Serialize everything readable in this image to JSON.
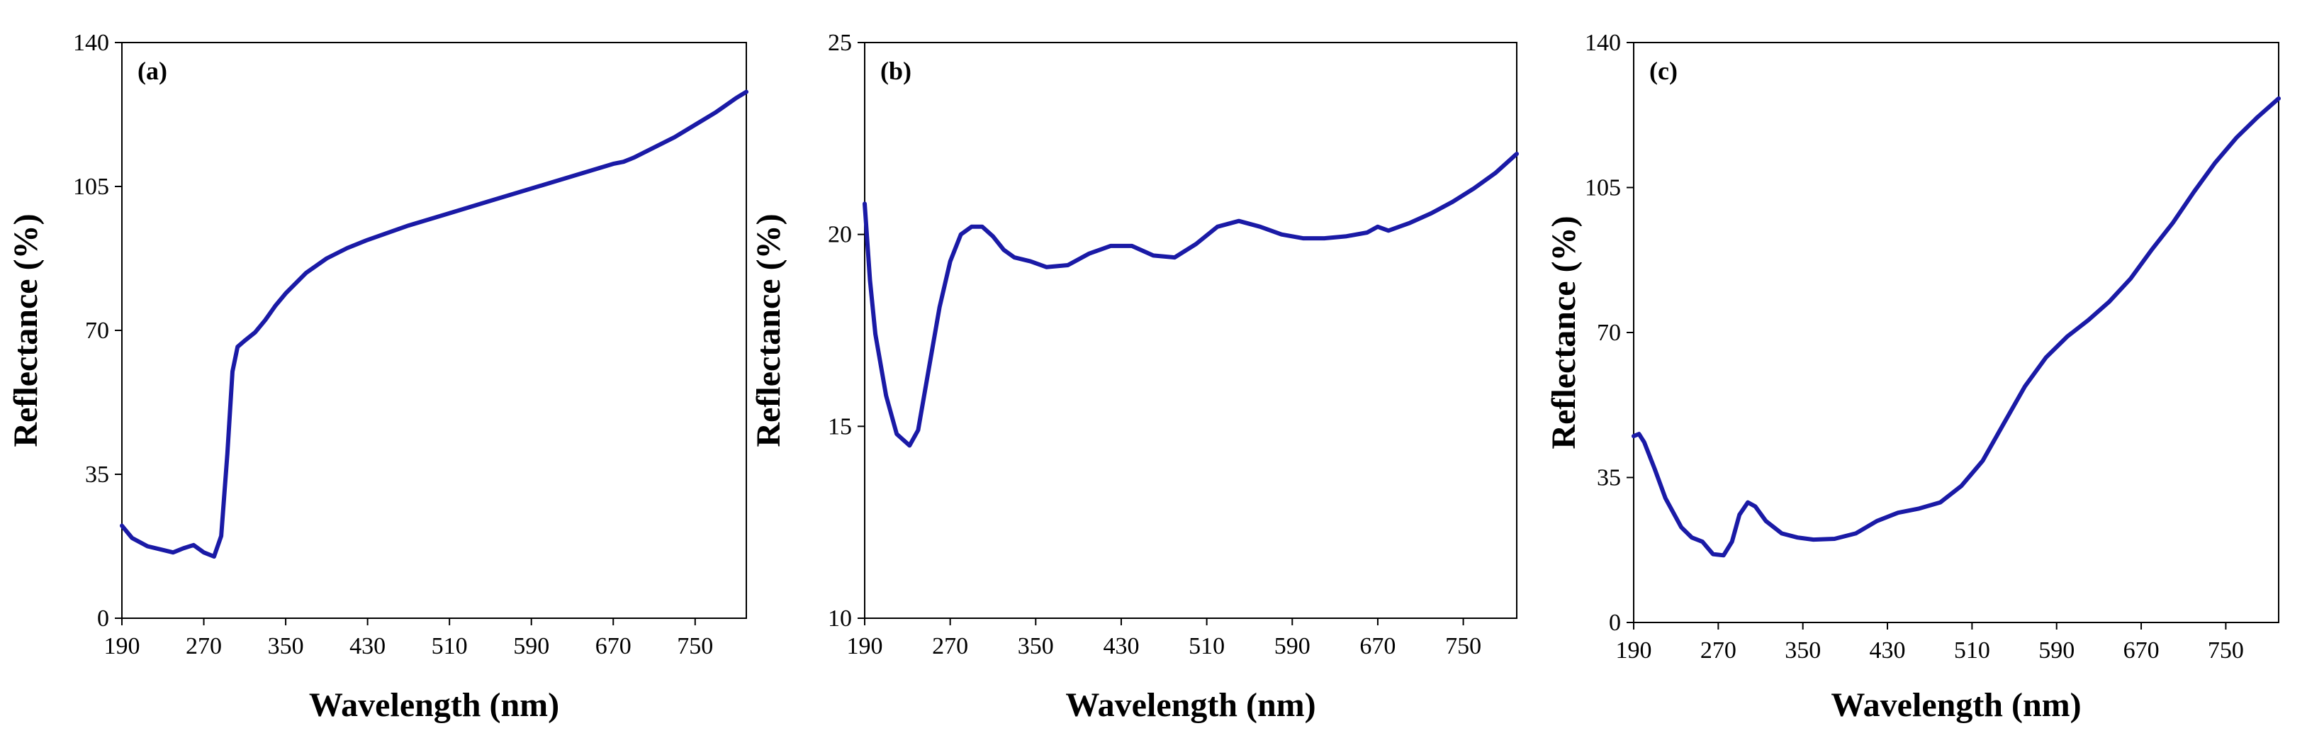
{
  "chart_data": [
    {
      "type": "line",
      "panel_label": "(a)",
      "xlabel": "Wavelength (nm)",
      "ylabel": "Reflectance (%)",
      "xlim": [
        190,
        800
      ],
      "ylim": [
        0,
        140
      ],
      "xticks": [
        190,
        270,
        350,
        430,
        510,
        590,
        670,
        750
      ],
      "yticks": [
        0,
        35,
        70,
        105,
        140
      ],
      "grid": false,
      "legend": "none",
      "line_color": "#1a1aa6",
      "series": [
        {
          "name": "Reflectance",
          "x": [
            190,
            200,
            215,
            240,
            250,
            260,
            270,
            280,
            287,
            293,
            298,
            303,
            310,
            320,
            330,
            340,
            350,
            370,
            390,
            410,
            430,
            470,
            510,
            550,
            590,
            630,
            670,
            680,
            690,
            710,
            730,
            750,
            770,
            790,
            800
          ],
          "y": [
            22.5,
            19.5,
            17.5,
            16,
            17,
            17.8,
            16,
            15,
            20,
            40,
            60,
            66,
            67.5,
            69.5,
            72.5,
            76,
            79,
            84,
            87.5,
            90,
            92,
            95.5,
            98.5,
            101.5,
            104.5,
            107.5,
            110.5,
            111,
            112,
            114.5,
            117,
            120,
            123,
            126.5,
            128
          ]
        }
      ]
    },
    {
      "type": "line",
      "panel_label": "(b)",
      "xlabel": "Wavelength (nm)",
      "ylabel": "Reflectance (%)",
      "xlim": [
        190,
        800
      ],
      "ylim": [
        10,
        25
      ],
      "xticks": [
        190,
        270,
        350,
        430,
        510,
        590,
        670,
        750
      ],
      "yticks": [
        10,
        15,
        20,
        25
      ],
      "grid": false,
      "legend": "none",
      "line_color": "#1a1aa6",
      "series": [
        {
          "name": "Reflectance",
          "x": [
            190,
            195,
            200,
            210,
            220,
            232,
            240,
            250,
            260,
            270,
            280,
            290,
            300,
            310,
            320,
            330,
            345,
            360,
            380,
            400,
            420,
            440,
            460,
            480,
            500,
            520,
            540,
            560,
            580,
            600,
            620,
            640,
            660,
            670,
            680,
            690,
            700,
            720,
            740,
            760,
            780,
            800
          ],
          "y": [
            20.8,
            18.8,
            17.4,
            15.8,
            14.8,
            14.5,
            14.9,
            16.5,
            18.1,
            19.3,
            20.0,
            20.2,
            20.2,
            19.95,
            19.6,
            19.4,
            19.3,
            19.15,
            19.2,
            19.5,
            19.7,
            19.7,
            19.45,
            19.4,
            19.75,
            20.2,
            20.35,
            20.2,
            20.0,
            19.9,
            19.9,
            19.95,
            20.05,
            20.2,
            20.1,
            20.2,
            20.3,
            20.55,
            20.85,
            21.2,
            21.6,
            22.1
          ]
        }
      ]
    },
    {
      "type": "line",
      "panel_label": "(c)",
      "xlabel": "Wavelength (nm)",
      "ylabel": "Reflectance (%)",
      "xlim": [
        190,
        800
      ],
      "ylim": [
        0,
        140
      ],
      "xticks": [
        190,
        270,
        350,
        430,
        510,
        590,
        670,
        750
      ],
      "yticks": [
        0,
        35,
        70,
        105,
        140
      ],
      "grid": false,
      "legend": "none",
      "line_color": "#1a1aa6",
      "series": [
        {
          "name": "Reflectance",
          "x": [
            190,
            195,
            200,
            210,
            220,
            235,
            245,
            255,
            265,
            275,
            283,
            290,
            298,
            305,
            315,
            330,
            345,
            360,
            380,
            400,
            420,
            440,
            460,
            480,
            500,
            520,
            540,
            560,
            580,
            600,
            620,
            640,
            660,
            680,
            700,
            720,
            740,
            760,
            780,
            800
          ],
          "y": [
            45,
            45.5,
            43.5,
            37,
            30,
            23,
            20.5,
            19.5,
            16.5,
            16.2,
            19.5,
            26,
            29,
            28,
            24.5,
            21.5,
            20.5,
            20.0,
            20.2,
            21.5,
            24.5,
            26.5,
            27.5,
            29.0,
            33.0,
            39.0,
            48.0,
            57.0,
            64.0,
            69.0,
            73.0,
            77.5,
            83.0,
            90.0,
            96.5,
            104.0,
            111.0,
            117.0,
            122.0,
            126.5
          ]
        }
      ]
    }
  ]
}
